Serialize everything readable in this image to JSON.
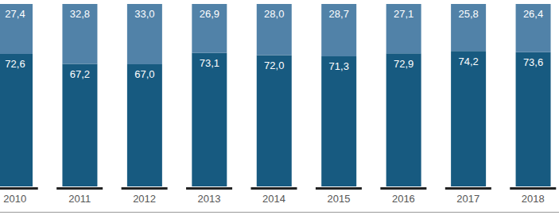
{
  "chart_data": {
    "type": "bar",
    "stacked": true,
    "data_labels": true,
    "tick_labels": "x",
    "grid": false,
    "categories": [
      "2010",
      "2011",
      "2012",
      "2013",
      "2014",
      "2015",
      "2016",
      "2017",
      "2018"
    ],
    "ylim": [
      0,
      100
    ],
    "series": [
      {
        "color": "#175a80",
        "values": [
          72.6,
          67.2,
          67.0,
          73.1,
          72.0,
          71.3,
          72.9,
          74.2,
          73.6
        ],
        "value_labels": [
          "72,6",
          "67,2",
          "67,0",
          "73,1",
          "72,0",
          "71,3",
          "72,9",
          "74,2",
          "73,6"
        ]
      },
      {
        "color": "#5182a8",
        "values": [
          27.4,
          32.8,
          33.0,
          26.9,
          28.0,
          28.7,
          27.1,
          25.8,
          26.4
        ],
        "value_labels": [
          "27,4",
          "32,8",
          "33,0",
          "26,9",
          "28,0",
          "28,7",
          "27,1",
          "25,8",
          "26,4"
        ]
      }
    ]
  }
}
